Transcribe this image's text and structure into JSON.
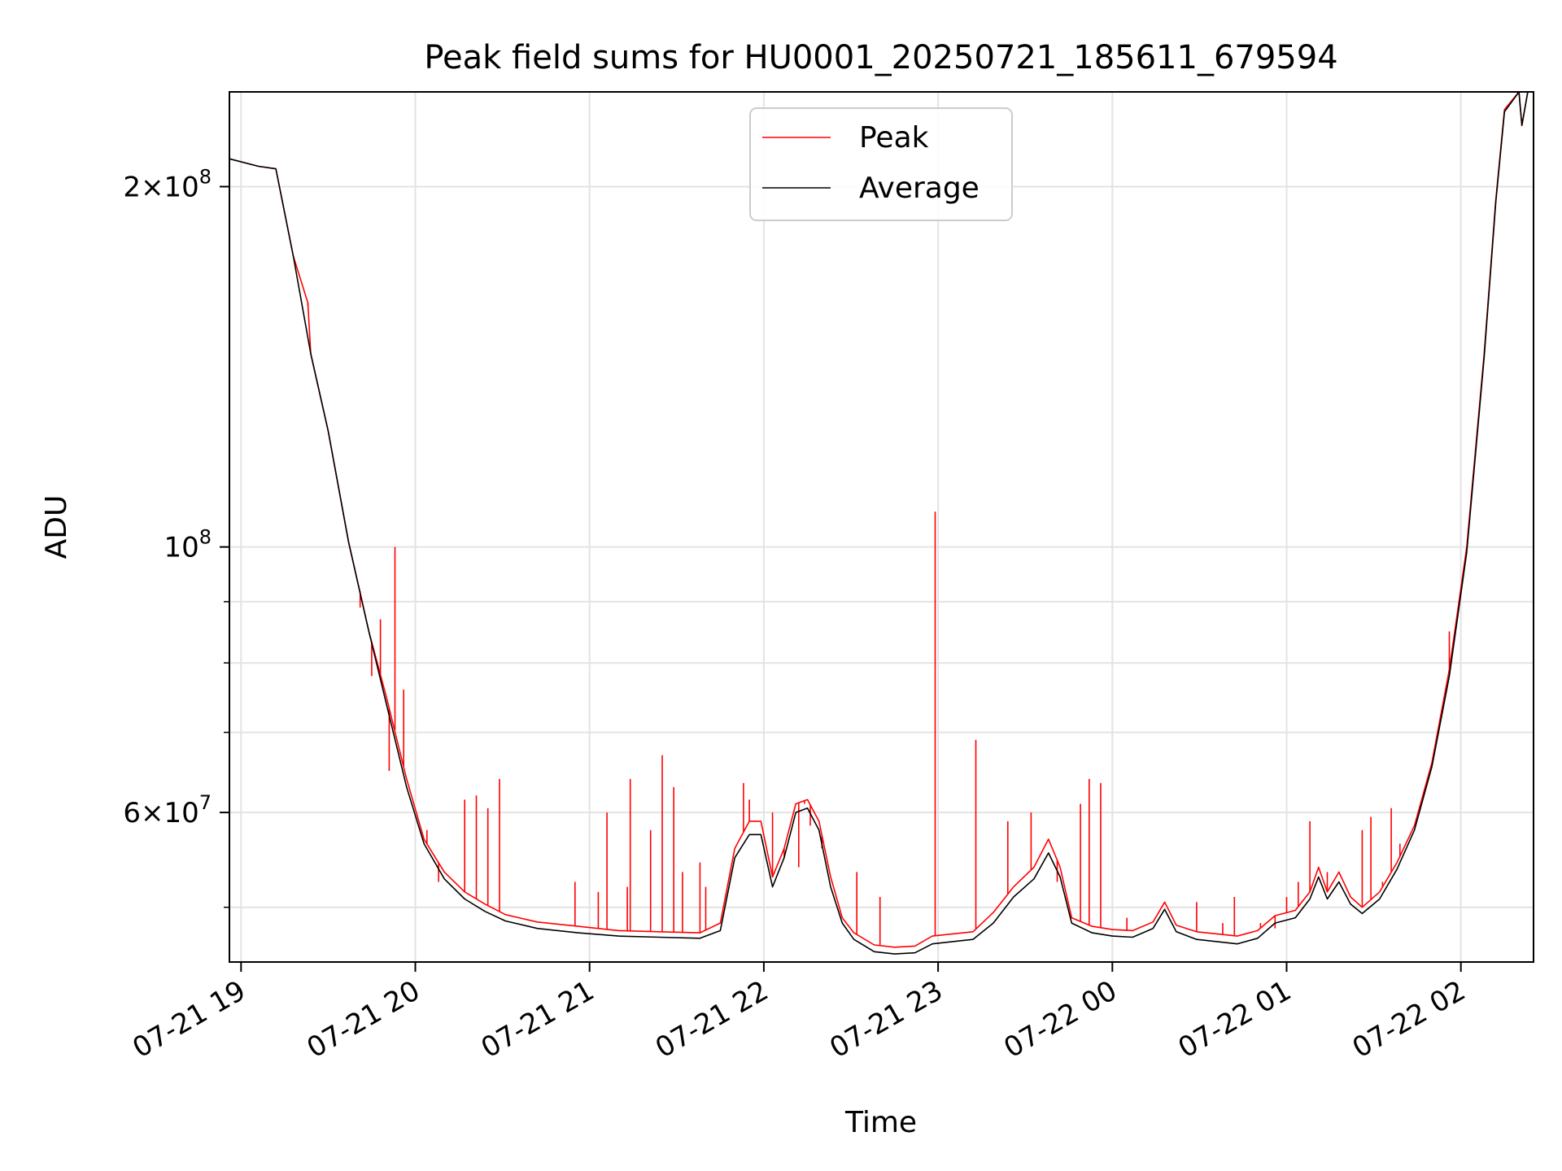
{
  "chart_data": {
    "type": "line",
    "title": "Peak field sums for HU0001_20250721_185611_679594",
    "xlabel": "Time",
    "ylabel": "ADU",
    "y_scale": "log",
    "ylim": [
      45000000,
      240000000
    ],
    "xlim": [
      "2025-07-21 18:56",
      "2025-07-22 02:25"
    ],
    "grid": true,
    "legend_position": "upper center",
    "x_ticks": [
      {
        "t": "2025-07-21 19:00",
        "label": "07-21 19"
      },
      {
        "t": "2025-07-21 20:00",
        "label": "07-21 20"
      },
      {
        "t": "2025-07-21 21:00",
        "label": "07-21 21"
      },
      {
        "t": "2025-07-21 22:00",
        "label": "07-21 22"
      },
      {
        "t": "2025-07-21 23:00",
        "label": "07-21 23"
      },
      {
        "t": "2025-07-22 00:00",
        "label": "07-22 00"
      },
      {
        "t": "2025-07-22 01:00",
        "label": "07-22 01"
      },
      {
        "t": "2025-07-22 02:00",
        "label": "07-22 02"
      }
    ],
    "y_ticks": [
      {
        "v": 60000000,
        "base": "6",
        "exp": "7"
      },
      {
        "v": 100000000,
        "base": "",
        "exp": "8"
      },
      {
        "v": 200000000,
        "base": "2",
        "exp": "8"
      }
    ],
    "series": [
      {
        "name": "Peak",
        "color": "#ff0000",
        "points": [
          [
            "2025-07-21 18:56",
            211000000
          ],
          [
            "2025-07-21 19:06",
            208000000
          ],
          [
            "2025-07-21 19:12",
            207000000
          ],
          [
            "2025-07-21 19:18",
            175000000
          ],
          [
            "2025-07-21 19:23",
            160000000
          ],
          [
            "2025-07-21 19:24",
            145000000
          ],
          [
            "2025-07-21 19:30",
            125000000
          ],
          [
            "2025-07-21 19:37",
            101000000
          ],
          [
            "2025-07-21 19:44",
            85000000
          ],
          [
            "2025-07-21 19:50",
            75000000
          ],
          [
            "2025-07-21 19:57",
            64000000
          ],
          [
            "2025-07-21 20:03",
            57000000
          ],
          [
            "2025-07-21 20:10",
            53500000
          ],
          [
            "2025-07-21 20:17",
            51500000
          ],
          [
            "2025-07-21 20:24",
            50300000
          ],
          [
            "2025-07-21 20:31",
            49300000
          ],
          [
            "2025-07-21 20:42",
            48600000
          ],
          [
            "2025-07-21 20:56",
            48200000
          ],
          [
            "2025-07-21 21:10",
            47800000
          ],
          [
            "2025-07-21 21:24",
            47700000
          ],
          [
            "2025-07-21 21:38",
            47600000
          ],
          [
            "2025-07-21 21:45",
            48500000
          ],
          [
            "2025-07-21 21:50",
            56000000
          ],
          [
            "2025-07-21 21:55",
            59000000
          ],
          [
            "2025-07-21 21:59",
            59000000
          ],
          [
            "2025-07-21 22:03",
            53000000
          ],
          [
            "2025-07-21 22:07",
            56000000
          ],
          [
            "2025-07-21 22:11",
            61000000
          ],
          [
            "2025-07-21 22:15",
            61500000
          ],
          [
            "2025-07-21 22:19",
            59000000
          ],
          [
            "2025-07-21 22:23",
            53000000
          ],
          [
            "2025-07-21 22:27",
            49000000
          ],
          [
            "2025-07-21 22:31",
            47600000
          ],
          [
            "2025-07-21 22:38",
            46500000
          ],
          [
            "2025-07-21 22:45",
            46300000
          ],
          [
            "2025-07-21 22:52",
            46400000
          ],
          [
            "2025-07-21 22:58",
            47300000
          ],
          [
            "2025-07-21 23:05",
            47500000
          ],
          [
            "2025-07-21 23:12",
            47700000
          ],
          [
            "2025-07-21 23:19",
            49500000
          ],
          [
            "2025-07-21 23:26",
            52000000
          ],
          [
            "2025-07-21 23:33",
            54000000
          ],
          [
            "2025-07-21 23:38",
            57000000
          ],
          [
            "2025-07-21 23:42",
            54000000
          ],
          [
            "2025-07-21 23:46",
            49000000
          ],
          [
            "2025-07-21 23:53",
            48200000
          ],
          [
            "2025-07-22 00:00",
            47900000
          ],
          [
            "2025-07-22 00:07",
            47800000
          ],
          [
            "2025-07-22 00:14",
            48600000
          ],
          [
            "2025-07-22 00:18",
            50500000
          ],
          [
            "2025-07-22 00:22",
            48300000
          ],
          [
            "2025-07-22 00:29",
            47700000
          ],
          [
            "2025-07-22 00:36",
            47500000
          ],
          [
            "2025-07-22 00:43",
            47300000
          ],
          [
            "2025-07-22 00:50",
            47800000
          ],
          [
            "2025-07-22 00:56",
            49200000
          ],
          [
            "2025-07-22 01:03",
            49700000
          ],
          [
            "2025-07-22 01:08",
            51500000
          ],
          [
            "2025-07-22 01:11",
            54000000
          ],
          [
            "2025-07-22 01:14",
            51500000
          ],
          [
            "2025-07-22 01:18",
            53500000
          ],
          [
            "2025-07-22 01:22",
            51000000
          ],
          [
            "2025-07-22 01:26",
            50000000
          ],
          [
            "2025-07-22 01:32",
            51500000
          ],
          [
            "2025-07-22 01:38",
            54500000
          ],
          [
            "2025-07-22 01:44",
            58500000
          ],
          [
            "2025-07-22 01:50",
            66000000
          ],
          [
            "2025-07-22 01:56",
            79000000
          ],
          [
            "2025-07-22 02:02",
            100000000
          ],
          [
            "2025-07-22 02:08",
            145000000
          ],
          [
            "2025-07-22 02:12",
            195000000
          ],
          [
            "2025-07-22 02:15",
            232000000
          ],
          [
            "2025-07-22 02:20",
            240000000
          ],
          [
            "2025-07-22 02:21",
            225000000
          ],
          [
            "2025-07-22 02:23",
            240000000
          ]
        ],
        "spikes": [
          [
            "2025-07-21 19:23",
            159000000
          ],
          [
            "2025-07-21 19:41",
            89000000
          ],
          [
            "2025-07-21 19:45",
            78000000
          ],
          [
            "2025-07-21 19:47",
            80000000
          ],
          [
            "2025-07-21 19:48",
            87000000
          ],
          [
            "2025-07-21 19:51",
            65000000
          ],
          [
            "2025-07-21 19:53",
            100000000
          ],
          [
            "2025-07-21 19:56",
            76000000
          ],
          [
            "2025-07-21 20:04",
            58000000
          ],
          [
            "2025-07-21 20:08",
            52500000
          ],
          [
            "2025-07-21 20:17",
            61500000
          ],
          [
            "2025-07-21 20:21",
            62000000
          ],
          [
            "2025-07-21 20:25",
            60500000
          ],
          [
            "2025-07-21 20:29",
            64000000
          ],
          [
            "2025-07-21 20:55",
            52500000
          ],
          [
            "2025-07-21 21:03",
            51500000
          ],
          [
            "2025-07-21 21:06",
            60000000
          ],
          [
            "2025-07-21 21:13",
            52000000
          ],
          [
            "2025-07-21 21:14",
            64000000
          ],
          [
            "2025-07-21 21:21",
            58000000
          ],
          [
            "2025-07-21 21:25",
            67000000
          ],
          [
            "2025-07-21 21:29",
            63000000
          ],
          [
            "2025-07-21 21:32",
            53500000
          ],
          [
            "2025-07-21 21:38",
            54500000
          ],
          [
            "2025-07-21 21:40",
            52000000
          ],
          [
            "2025-07-21 21:53",
            63500000
          ],
          [
            "2025-07-21 21:55",
            61500000
          ],
          [
            "2025-07-21 22:03",
            60000000
          ],
          [
            "2025-07-21 22:07",
            55000000
          ],
          [
            "2025-07-21 22:12",
            54000000
          ],
          [
            "2025-07-21 22:14",
            61000000
          ],
          [
            "2025-07-21 22:16",
            58500000
          ],
          [
            "2025-07-21 22:20",
            56000000
          ],
          [
            "2025-07-21 22:32",
            53500000
          ],
          [
            "2025-07-21 22:40",
            51000000
          ],
          [
            "2025-07-21 22:59",
            107000000
          ],
          [
            "2025-07-21 23:13",
            69000000
          ],
          [
            "2025-07-21 23:24",
            59000000
          ],
          [
            "2025-07-21 23:32",
            60000000
          ],
          [
            "2025-07-21 23:41",
            52500000
          ],
          [
            "2025-07-21 23:49",
            61000000
          ],
          [
            "2025-07-21 23:52",
            64000000
          ],
          [
            "2025-07-21 23:56",
            63500000
          ],
          [
            "2025-07-22 00:05",
            49000000
          ],
          [
            "2025-07-22 00:29",
            50500000
          ],
          [
            "2025-07-22 00:38",
            48500000
          ],
          [
            "2025-07-22 00:42",
            51000000
          ],
          [
            "2025-07-22 00:51",
            48500000
          ],
          [
            "2025-07-22 00:56",
            48000000
          ],
          [
            "2025-07-22 01:00",
            51000000
          ],
          [
            "2025-07-22 01:04",
            52500000
          ],
          [
            "2025-07-22 01:08",
            59000000
          ],
          [
            "2025-07-22 01:14",
            53500000
          ],
          [
            "2025-07-22 01:26",
            58000000
          ],
          [
            "2025-07-22 01:29",
            59500000
          ],
          [
            "2025-07-22 01:33",
            52500000
          ],
          [
            "2025-07-22 01:36",
            60500000
          ],
          [
            "2025-07-22 01:39",
            56500000
          ],
          [
            "2025-07-22 01:56",
            85000000
          ]
        ]
      },
      {
        "name": "Average",
        "color": "#000000",
        "points": [
          [
            "2025-07-21 18:56",
            211000000
          ],
          [
            "2025-07-21 19:06",
            208000000
          ],
          [
            "2025-07-21 19:12",
            207000000
          ],
          [
            "2025-07-21 19:18",
            175000000
          ],
          [
            "2025-07-21 19:24",
            145000000
          ],
          [
            "2025-07-21 19:30",
            125000000
          ],
          [
            "2025-07-21 19:37",
            101000000
          ],
          [
            "2025-07-21 19:44",
            85000000
          ],
          [
            "2025-07-21 19:50",
            74000000
          ],
          [
            "2025-07-21 19:57",
            63000000
          ],
          [
            "2025-07-21 20:03",
            56500000
          ],
          [
            "2025-07-21 20:10",
            52800000
          ],
          [
            "2025-07-21 20:17",
            50800000
          ],
          [
            "2025-07-21 20:24",
            49600000
          ],
          [
            "2025-07-21 20:31",
            48700000
          ],
          [
            "2025-07-21 20:42",
            48000000
          ],
          [
            "2025-07-21 20:56",
            47600000
          ],
          [
            "2025-07-21 21:10",
            47300000
          ],
          [
            "2025-07-21 21:24",
            47200000
          ],
          [
            "2025-07-21 21:38",
            47100000
          ],
          [
            "2025-07-21 21:45",
            47800000
          ],
          [
            "2025-07-21 21:50",
            55000000
          ],
          [
            "2025-07-21 21:55",
            57500000
          ],
          [
            "2025-07-21 21:59",
            57500000
          ],
          [
            "2025-07-21 22:03",
            52000000
          ],
          [
            "2025-07-21 22:07",
            55000000
          ],
          [
            "2025-07-21 22:11",
            60000000
          ],
          [
            "2025-07-21 22:15",
            60500000
          ],
          [
            "2025-07-21 22:19",
            58000000
          ],
          [
            "2025-07-21 22:23",
            52000000
          ],
          [
            "2025-07-21 22:27",
            48500000
          ],
          [
            "2025-07-21 22:31",
            47000000
          ],
          [
            "2025-07-21 22:38",
            45900000
          ],
          [
            "2025-07-21 22:45",
            45700000
          ],
          [
            "2025-07-21 22:52",
            45800000
          ],
          [
            "2025-07-21 22:58",
            46600000
          ],
          [
            "2025-07-21 23:05",
            46800000
          ],
          [
            "2025-07-21 23:12",
            47000000
          ],
          [
            "2025-07-21 23:19",
            48500000
          ],
          [
            "2025-07-21 23:26",
            51000000
          ],
          [
            "2025-07-21 23:33",
            52800000
          ],
          [
            "2025-07-21 23:38",
            55500000
          ],
          [
            "2025-07-21 23:42",
            53000000
          ],
          [
            "2025-07-21 23:46",
            48500000
          ],
          [
            "2025-07-21 23:53",
            47600000
          ],
          [
            "2025-07-22 00:00",
            47300000
          ],
          [
            "2025-07-22 00:07",
            47200000
          ],
          [
            "2025-07-22 00:14",
            48000000
          ],
          [
            "2025-07-22 00:18",
            49800000
          ],
          [
            "2025-07-22 00:22",
            47700000
          ],
          [
            "2025-07-22 00:29",
            47000000
          ],
          [
            "2025-07-22 00:36",
            46800000
          ],
          [
            "2025-07-22 00:43",
            46600000
          ],
          [
            "2025-07-22 00:50",
            47100000
          ],
          [
            "2025-07-22 00:56",
            48500000
          ],
          [
            "2025-07-22 01:03",
            49000000
          ],
          [
            "2025-07-22 01:08",
            50800000
          ],
          [
            "2025-07-22 01:11",
            53000000
          ],
          [
            "2025-07-22 01:14",
            50800000
          ],
          [
            "2025-07-22 01:18",
            52500000
          ],
          [
            "2025-07-22 01:22",
            50300000
          ],
          [
            "2025-07-22 01:26",
            49400000
          ],
          [
            "2025-07-22 01:32",
            50800000
          ],
          [
            "2025-07-22 01:38",
            53800000
          ],
          [
            "2025-07-22 01:44",
            58000000
          ],
          [
            "2025-07-22 01:50",
            65500000
          ],
          [
            "2025-07-22 01:56",
            78000000
          ],
          [
            "2025-07-22 02:02",
            99000000
          ],
          [
            "2025-07-22 02:08",
            144000000
          ],
          [
            "2025-07-22 02:12",
            194000000
          ],
          [
            "2025-07-22 02:15",
            231000000
          ],
          [
            "2025-07-22 02:20",
            240000000
          ],
          [
            "2025-07-22 02:21",
            225000000
          ],
          [
            "2025-07-22 02:23",
            240000000
          ]
        ]
      }
    ]
  }
}
